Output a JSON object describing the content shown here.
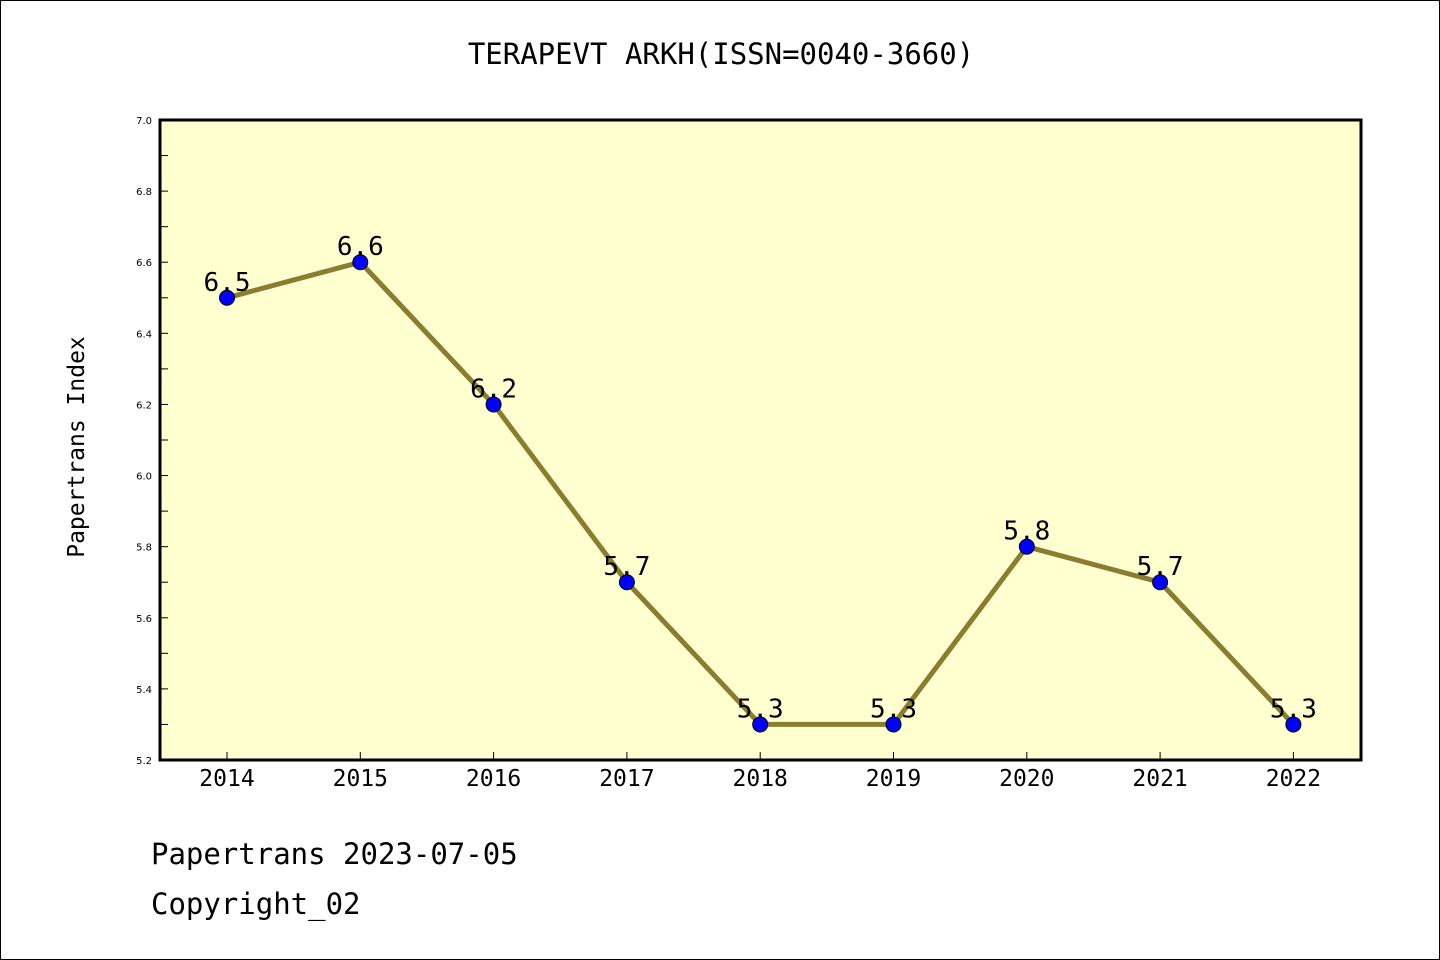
{
  "header": {
    "title": "TERAPEVT ARKH(ISSN=0040-3660)"
  },
  "footer": {
    "line1": "Papertrans 2023-07-05",
    "line2": "Copyright_02"
  },
  "chart_data": {
    "type": "line",
    "title": "TERAPEVT ARKH(ISSN=0040-3660)",
    "ylabel": "Papertrans Index",
    "xlabel": "",
    "categories": [
      "2014",
      "2015",
      "2016",
      "2017",
      "2018",
      "2019",
      "2020",
      "2021",
      "2022"
    ],
    "values": [
      6.5,
      6.6,
      6.2,
      5.7,
      5.3,
      5.3,
      5.8,
      5.7,
      5.3
    ],
    "data_labels": [
      "6.5",
      "6.6",
      "6.2",
      "5.7",
      "5.3",
      "5.3",
      "5.8",
      "5.7",
      "5.3"
    ],
    "ylim": [
      5.2,
      7.0
    ],
    "yticks": [
      "5.2",
      "5.4",
      "5.6",
      "5.8",
      "6.0",
      "6.2",
      "6.4",
      "6.6",
      "6.8",
      "7.0"
    ],
    "grid": false,
    "colors": {
      "plot_background": "#ffffd0",
      "line": "#8b7d30",
      "marker": "#0000ff"
    }
  }
}
